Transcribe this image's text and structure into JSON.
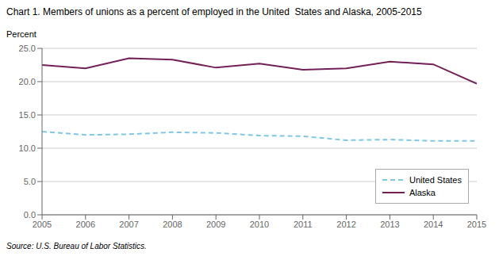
{
  "chart_data": {
    "type": "line",
    "title": "Chart 1. Members of unions as a percent of employed in the United  States and Alaska, 2005-2015",
    "ylabel": "Percent",
    "source": "Source: U.S. Bureau of Labor Statistics.",
    "x": [
      2005,
      2006,
      2007,
      2008,
      2009,
      2010,
      2011,
      2012,
      2013,
      2014,
      2015
    ],
    "series": [
      {
        "name": "United States",
        "color": "#7ec8e3",
        "line_style": "dashed",
        "values": [
          12.5,
          12.0,
          12.1,
          12.4,
          12.3,
          11.9,
          11.8,
          11.2,
          11.3,
          11.1,
          11.1
        ]
      },
      {
        "name": "Alaska",
        "color": "#722057",
        "line_style": "solid",
        "values": [
          22.5,
          22.0,
          23.5,
          23.3,
          22.1,
          22.7,
          21.8,
          22.0,
          23.0,
          22.6,
          19.7
        ]
      }
    ],
    "xlim": [
      2005,
      2015
    ],
    "xticks": [
      2005,
      2006,
      2007,
      2008,
      2009,
      2010,
      2011,
      2012,
      2013,
      2014,
      2015
    ],
    "ylim": [
      0,
      25.0
    ],
    "yticks": [
      {
        "value": 0.0,
        "label": "0.0"
      },
      {
        "value": 5.0,
        "label": "5.0"
      },
      {
        "value": 10.0,
        "label": "10.0"
      },
      {
        "value": 15.0,
        "label": "15.0"
      },
      {
        "value": 20.0,
        "label": "20.0"
      },
      {
        "value": 25.0,
        "label": "25.0"
      }
    ],
    "grid": "y",
    "legend": "lower right"
  }
}
